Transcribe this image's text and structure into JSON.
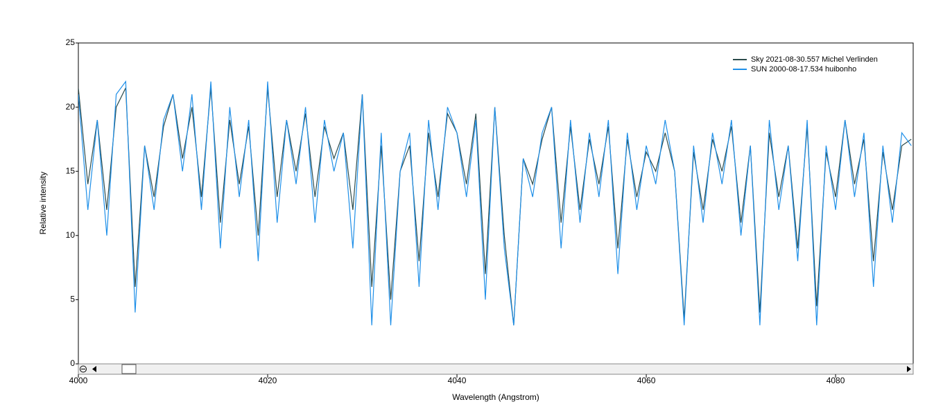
{
  "chart_data": {
    "type": "line",
    "x_label": "Wavelength (Angstrom)",
    "y_label": "Relative intensity",
    "x": [
      4000,
      4001,
      4002,
      4003,
      4004,
      4005,
      4006,
      4007,
      4008,
      4009,
      4010,
      4011,
      4012,
      4013,
      4014,
      4015,
      4016,
      4017,
      4018,
      4019,
      4020,
      4021,
      4022,
      4023,
      4024,
      4025,
      4026,
      4027,
      4028,
      4029,
      4030,
      4031,
      4032,
      4033,
      4034,
      4035,
      4036,
      4037,
      4038,
      4039,
      4040,
      4041,
      4042,
      4043,
      4044,
      4045,
      4046,
      4047,
      4048,
      4049,
      4050,
      4051,
      4052,
      4053,
      4054,
      4055,
      4056,
      4057,
      4058,
      4059,
      4060,
      4061,
      4062,
      4063,
      4064,
      4065,
      4066,
      4067,
      4068,
      4069,
      4070,
      4071,
      4072,
      4073,
      4074,
      4075,
      4076,
      4077,
      4078,
      4079,
      4080,
      4081,
      4082,
      4083,
      4084,
      4085,
      4086,
      4087,
      4088
    ],
    "series": [
      {
        "name": "Sky  2021-08-30.557  Michel Verlinden",
        "color": "#2b4a4a",
        "values": [
          21.5,
          14,
          19,
          12,
          20,
          21.5,
          6,
          17,
          13,
          18.5,
          21,
          16,
          20,
          13,
          21.5,
          11,
          19,
          14,
          18.5,
          10,
          21.5,
          13,
          19,
          15,
          19.5,
          13,
          18.5,
          16,
          18,
          12,
          21,
          6,
          17,
          5,
          15,
          17,
          8,
          18,
          13,
          19.5,
          18,
          14,
          19.5,
          7,
          20,
          10,
          3,
          16,
          14,
          17.5,
          20,
          11,
          18.5,
          12,
          17.5,
          14,
          18.5,
          9,
          17.5,
          13,
          16.5,
          15,
          18,
          15,
          3.5,
          16.5,
          12,
          17.5,
          15,
          18.5,
          11,
          17,
          4,
          18,
          13,
          17,
          9,
          18.5,
          4.5,
          16.5,
          13,
          19,
          14,
          17.5,
          8,
          16.5,
          12,
          17,
          17.5
        ]
      },
      {
        "name": "SUN  2000-08-17.534  huibonho",
        "color": "#1e8fe8",
        "values": [
          21,
          12,
          19,
          10,
          21,
          22,
          4,
          17,
          12,
          19,
          21,
          15,
          21,
          12,
          22,
          9,
          20,
          13,
          19,
          8,
          22,
          11,
          19,
          14,
          20,
          11,
          19,
          15,
          18,
          9,
          21,
          3,
          18,
          3,
          15,
          18,
          6,
          19,
          12,
          20,
          18,
          13,
          19,
          5,
          20,
          9,
          3,
          16,
          13,
          18,
          20,
          9,
          19,
          11,
          18,
          13,
          19,
          7,
          18,
          12,
          17,
          14,
          19,
          15,
          3,
          17,
          11,
          18,
          14,
          19,
          10,
          17,
          3,
          19,
          12,
          17,
          8,
          19,
          3,
          17,
          12,
          19,
          13,
          18,
          6,
          17,
          11,
          18,
          17
        ]
      }
    ],
    "xlim": [
      4000,
      4088.2
    ],
    "xticks": [
      4000,
      4020,
      4040,
      4060,
      4080
    ],
    "ylim": [
      0,
      25
    ],
    "yticks": [
      0,
      5,
      10,
      15,
      20,
      25
    ]
  }
}
